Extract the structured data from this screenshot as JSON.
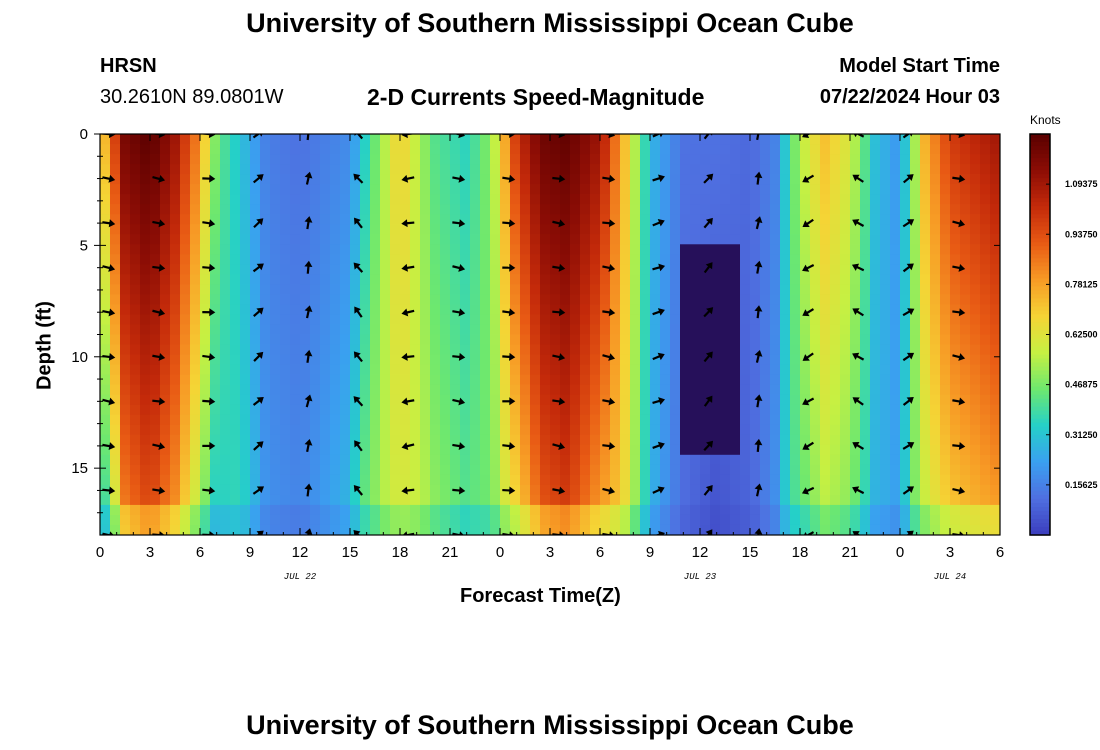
{
  "header": {
    "title": "University of Southern Mississippi Ocean Cube",
    "station": "HRSN",
    "coords": "30.2610N  89.0801W",
    "plot_title": "2-D Currents Speed-Magnitude",
    "model_label": "Model Start Time",
    "model_time": "07/22/2024 Hour 03",
    "footer_title": "University of Southern Mississippi Ocean Cube"
  },
  "colors": {
    "scale": [
      "#3b3dbd",
      "#4f6fe0",
      "#3aa0f0",
      "#25d0c8",
      "#6ee86e",
      "#c6f042",
      "#f5d435",
      "#f79a25",
      "#e85a14",
      "#c42a0a",
      "#8c0d05",
      "#5a0000"
    ],
    "deep_low": "#26105a",
    "arrow": "#000000"
  },
  "chart_data": {
    "type": "heatmap",
    "title": "2-D Currents Speed-Magnitude",
    "xlabel": "Forecast Time(Z)",
    "ylabel": "Depth (ft)",
    "x_ticks": [
      "0",
      "3",
      "6",
      "9",
      "12",
      "15",
      "18",
      "21",
      "0",
      "3",
      "6",
      "9",
      "12",
      "15",
      "18",
      "21",
      "0",
      "3",
      "6"
    ],
    "x_range_hours": [
      0,
      54
    ],
    "date_labels": [
      {
        "label": "JUL 22",
        "hour": 12
      },
      {
        "label": "JUL 23",
        "hour": 36
      },
      {
        "label": "JUL 24",
        "hour": 51
      }
    ],
    "y_ticks": [
      0,
      5,
      10,
      15
    ],
    "y_range_ft": [
      0,
      18
    ],
    "colorbar": {
      "unit": "Knots",
      "range": [
        0,
        1.25
      ],
      "tick_values": [
        1.09375,
        0.9375,
        0.78125,
        0.625,
        0.46875,
        0.3125,
        0.15625
      ],
      "tick_labels": [
        "1.09375",
        "0.93750",
        "0.78125",
        "0.62500",
        "0.46875",
        "0.31250",
        "0.15625"
      ]
    },
    "speed_profile": {
      "hours": [
        0,
        0.7,
        1.5,
        3,
        4.5,
        5.8,
        7,
        8.5,
        10,
        12,
        15,
        16.5,
        18,
        20,
        22,
        23.5,
        25,
        26.5,
        28,
        30,
        31.5,
        33,
        35,
        37,
        39,
        40.5,
        42,
        43.5,
        45,
        46.5,
        48,
        49.5,
        51,
        54
      ],
      "surface_speed": [
        0.62,
        0.9,
        1.18,
        1.25,
        1.1,
        0.85,
        0.45,
        0.3,
        0.15,
        0.12,
        0.18,
        0.45,
        0.7,
        0.42,
        0.35,
        0.5,
        1.0,
        1.2,
        1.23,
        1.1,
        0.72,
        0.28,
        0.12,
        0.12,
        0.1,
        0.16,
        0.55,
        0.72,
        0.6,
        0.3,
        0.2,
        0.75,
        0.98,
        1.1
      ],
      "bottom_factor": [
        0.45,
        0.55,
        0.7,
        0.75,
        0.72,
        0.65,
        0.7,
        1.2,
        1.3,
        1.4,
        1.6,
        1.1,
        0.85,
        1.2,
        1.2,
        0.9,
        0.65,
        0.75,
        0.78,
        0.7,
        0.9,
        1.0,
        0.9,
        0.4,
        0.9,
        1.2,
        0.75,
        0.75,
        0.8,
        0.9,
        1.1,
        0.75,
        0.7,
        0.7
      ]
    },
    "arrows": {
      "hours": [
        0.5,
        3.5,
        6.5,
        9.5,
        12.5,
        15.5,
        18.5,
        21.5,
        24.5,
        27.5,
        30.5,
        33.5,
        36.5,
        39.5,
        42.5,
        45.5,
        48.5,
        51.5
      ],
      "depths_ft": [
        0,
        2,
        4,
        6,
        8,
        10,
        12,
        14,
        16,
        18
      ],
      "columns_deg": [
        10,
        10,
        5,
        -40,
        -80,
        -130,
        170,
        10,
        5,
        10,
        10,
        -20,
        -50,
        -80,
        150,
        -150,
        -35,
        10
      ]
    }
  }
}
